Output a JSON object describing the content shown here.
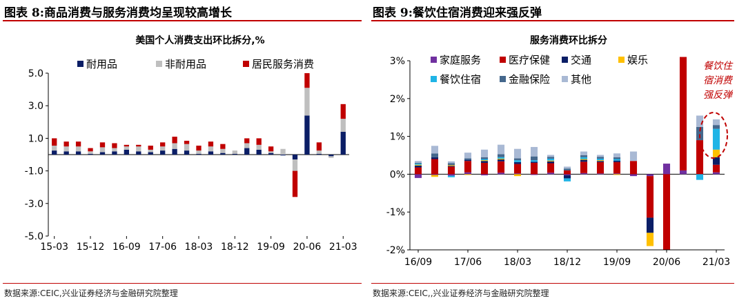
{
  "left": {
    "header": "图表 8:商品消费与服务消费均呈现较高增长",
    "source": "数据来源:CEIC,兴业证券经济与金融研究院整理"
  },
  "right": {
    "header": "图表 9:餐饮住宿消费迎来强反弹",
    "source": "数据来源:CEIC,,兴业证券经济与金融研究院整理"
  },
  "chart_data": [
    {
      "type": "bar",
      "stacked": true,
      "title": "美国个人消费支出环比拆分,%",
      "ylim": [
        -5,
        5
      ],
      "yticks": [
        "5.0",
        "3.0",
        "1.0",
        "-1.0",
        "-3.0",
        "-5.0"
      ],
      "xticks": [
        "15-03",
        "15-12",
        "16-09",
        "17-06",
        "18-03",
        "18-12",
        "19-09",
        "20-06",
        "21-03"
      ],
      "legend_position": "top",
      "categories": [
        "15-03",
        "15-06",
        "15-09",
        "15-12",
        "16-03",
        "16-06",
        "16-09",
        "16-12",
        "17-03",
        "17-06",
        "17-09",
        "17-12",
        "18-03",
        "18-06",
        "18-09",
        "18-12",
        "19-03",
        "19-06",
        "19-09",
        "19-12",
        "20-03",
        "20-06",
        "20-09",
        "20-12",
        "21-03"
      ],
      "series": [
        {
          "name": "耐用品",
          "color": "#0b1e66",
          "values": [
            0.25,
            0.2,
            0.2,
            0.05,
            0.15,
            0.2,
            0.3,
            0.2,
            0.15,
            0.25,
            0.35,
            0.25,
            0.05,
            0.2,
            0.1,
            0.05,
            0.4,
            0.3,
            0.1,
            -0.05,
            -0.3,
            2.4,
            0.05,
            -0.1,
            1.4
          ]
        },
        {
          "name": "非耐用品",
          "color": "#bfbfbf",
          "values": [
            0.3,
            0.3,
            0.3,
            0.15,
            0.3,
            0.2,
            0.2,
            0.3,
            0.15,
            0.25,
            0.35,
            0.4,
            0.2,
            0.3,
            0.25,
            0.2,
            0.3,
            0.3,
            0.1,
            0.35,
            -0.7,
            1.7,
            0.2,
            -0.1,
            0.8
          ]
        },
        {
          "name": "居民服务消费",
          "color": "#c00000",
          "values": [
            0.45,
            0.3,
            0.3,
            0.2,
            0.3,
            0.3,
            0.1,
            0.1,
            0.25,
            0.25,
            0.4,
            0.2,
            0.3,
            0.3,
            0.3,
            0.0,
            0.3,
            0.4,
            0.3,
            0.0,
            -1.6,
            0.9,
            0.5,
            0.0,
            0.9
          ]
        }
      ]
    },
    {
      "type": "bar",
      "stacked": true,
      "title": "服务消费环比拆分",
      "ylim": [
        -2,
        3
      ],
      "yticks": [
        "3%",
        "2%",
        "1%",
        "0%",
        "-1%",
        "-2%"
      ],
      "xticks": [
        "16/09",
        "17/06",
        "18/03",
        "18/12",
        "19/09",
        "20/06",
        "21/03"
      ],
      "legend_position": "top-left",
      "annotation": "餐饮住宿消费强反弹",
      "categories": [
        "16/09",
        "16/12",
        "17/03",
        "17/06",
        "17/09",
        "17/12",
        "18/03",
        "18/06",
        "18/09",
        "18/12",
        "19/03",
        "19/06",
        "19/09",
        "19/12",
        "20/03",
        "20/06",
        "20/09",
        "20/12",
        "21/03"
      ],
      "series": [
        {
          "name": "家庭服务",
          "color": "#7030a0",
          "values": [
            -0.1,
            -0.02,
            -0.04,
            0.05,
            -0.03,
            0.04,
            0.02,
            -0.02,
            0.04,
            -0.03,
            0.03,
            0.02,
            0.02,
            -0.05,
            -0.05,
            0.28,
            0.1,
            0.0,
            0.05
          ]
        },
        {
          "name": "医疗保健",
          "color": "#c00000",
          "values": [
            0.18,
            0.4,
            0.2,
            0.3,
            0.3,
            0.3,
            0.25,
            0.3,
            0.25,
            0.1,
            0.3,
            0.3,
            0.3,
            0.35,
            -1.1,
            -2.0,
            3.0,
            0.9,
            0.2
          ]
        },
        {
          "name": "交通",
          "color": "#0b1e66",
          "values": [
            0.05,
            0.05,
            0.02,
            0.03,
            0.05,
            0.05,
            0.05,
            0.03,
            0.05,
            -0.08,
            0.05,
            0.03,
            0.04,
            0.0,
            -0.4,
            0.0,
            0.0,
            0.0,
            0.2
          ]
        },
        {
          "name": "娱乐",
          "color": "#ffc000",
          "values": [
            0.02,
            -0.05,
            0.02,
            -0.02,
            0.02,
            0.02,
            -0.05,
            0.0,
            0.02,
            0.0,
            0.02,
            0.02,
            -0.02,
            0.0,
            -0.35,
            0.0,
            0.0,
            0.0,
            0.2
          ]
        },
        {
          "name": "餐饮住宿",
          "color": "#1fb4e6",
          "values": [
            0.03,
            0.0,
            -0.04,
            0.0,
            0.03,
            0.04,
            0.05,
            0.04,
            0.05,
            -0.08,
            0.05,
            0.04,
            0.04,
            0.0,
            0.0,
            0.0,
            0.0,
            -0.15,
            0.55
          ]
        },
        {
          "name": "金融保险",
          "color": "#44678c",
          "values": [
            0.02,
            0.1,
            0.05,
            0.04,
            0.05,
            0.08,
            0.05,
            0.1,
            0.05,
            0.05,
            0.05,
            0.05,
            0.05,
            0.0,
            0.0,
            0.0,
            0.0,
            0.35,
            0.1
          ]
        },
        {
          "name": "其他",
          "color": "#a9b9d4",
          "values": [
            0.05,
            0.2,
            0.05,
            0.15,
            0.2,
            0.25,
            0.25,
            0.25,
            0.05,
            0.05,
            0.1,
            0.05,
            0.1,
            0.25,
            0.0,
            0.0,
            0.0,
            0.3,
            0.15
          ]
        }
      ]
    }
  ]
}
